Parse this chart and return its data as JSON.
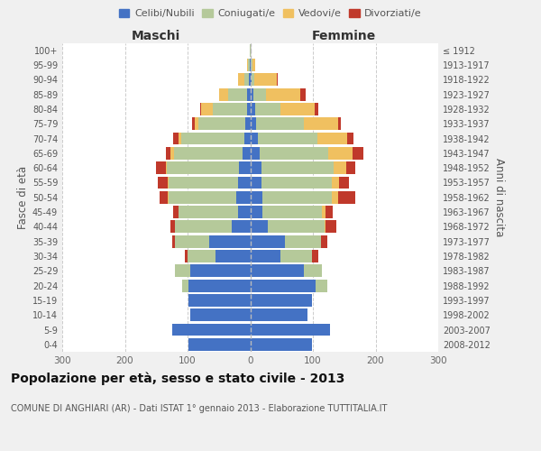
{
  "age_groups": [
    "0-4",
    "5-9",
    "10-14",
    "15-19",
    "20-24",
    "25-29",
    "30-34",
    "35-39",
    "40-44",
    "45-49",
    "50-54",
    "55-59",
    "60-64",
    "65-69",
    "70-74",
    "75-79",
    "80-84",
    "85-89",
    "90-94",
    "95-99",
    "100+"
  ],
  "birth_years": [
    "2008-2012",
    "2003-2007",
    "1998-2002",
    "1993-1997",
    "1988-1992",
    "1983-1987",
    "1978-1982",
    "1973-1977",
    "1968-1972",
    "1963-1967",
    "1958-1962",
    "1953-1957",
    "1948-1952",
    "1943-1947",
    "1938-1942",
    "1933-1937",
    "1928-1932",
    "1923-1927",
    "1918-1922",
    "1913-1917",
    "≤ 1912"
  ],
  "male_celibi": [
    98,
    125,
    95,
    98,
    98,
    95,
    55,
    65,
    30,
    20,
    22,
    20,
    18,
    12,
    10,
    8,
    5,
    5,
    2,
    1,
    0
  ],
  "male_coniugati": [
    0,
    0,
    0,
    0,
    10,
    25,
    45,
    55,
    90,
    95,
    108,
    110,
    115,
    110,
    100,
    75,
    55,
    30,
    8,
    2,
    1
  ],
  "male_vedovi": [
    0,
    0,
    0,
    0,
    0,
    0,
    0,
    0,
    0,
    0,
    2,
    2,
    2,
    5,
    5,
    5,
    18,
    15,
    10,
    2,
    0
  ],
  "male_divorziati": [
    0,
    0,
    0,
    0,
    0,
    0,
    5,
    5,
    8,
    8,
    12,
    15,
    15,
    8,
    8,
    5,
    2,
    0,
    0,
    0,
    0
  ],
  "female_celibi": [
    98,
    128,
    92,
    98,
    105,
    85,
    48,
    55,
    28,
    20,
    20,
    18,
    18,
    15,
    12,
    10,
    8,
    5,
    2,
    1,
    0
  ],
  "female_coniugati": [
    0,
    0,
    0,
    0,
    18,
    30,
    50,
    58,
    90,
    95,
    110,
    112,
    115,
    110,
    95,
    75,
    40,
    20,
    5,
    2,
    1
  ],
  "female_vedovi": [
    0,
    0,
    0,
    0,
    0,
    0,
    0,
    0,
    2,
    5,
    10,
    12,
    20,
    38,
    48,
    55,
    55,
    55,
    35,
    5,
    0
  ],
  "female_divorziati": [
    0,
    0,
    0,
    0,
    0,
    0,
    10,
    10,
    18,
    12,
    28,
    15,
    15,
    18,
    10,
    5,
    5,
    8,
    2,
    0,
    0
  ],
  "color_celibi": "#4472c4",
  "color_coniugati": "#b5c99a",
  "color_vedovi": "#f0c060",
  "color_divorziati": "#c0392b",
  "title": "Popolazione per età, sesso e stato civile - 2013",
  "subtitle": "COMUNE DI ANGHIARI (AR) - Dati ISTAT 1° gennaio 2013 - Elaborazione TUTTITALIA.IT",
  "xlabel_maschi": "Maschi",
  "xlabel_femmine": "Femmine",
  "ylabel_left": "Fasce di età",
  "ylabel_right": "Anni di nascita",
  "xlim": 300,
  "bg_color": "#f0f0f0",
  "plot_bg_color": "#ffffff"
}
